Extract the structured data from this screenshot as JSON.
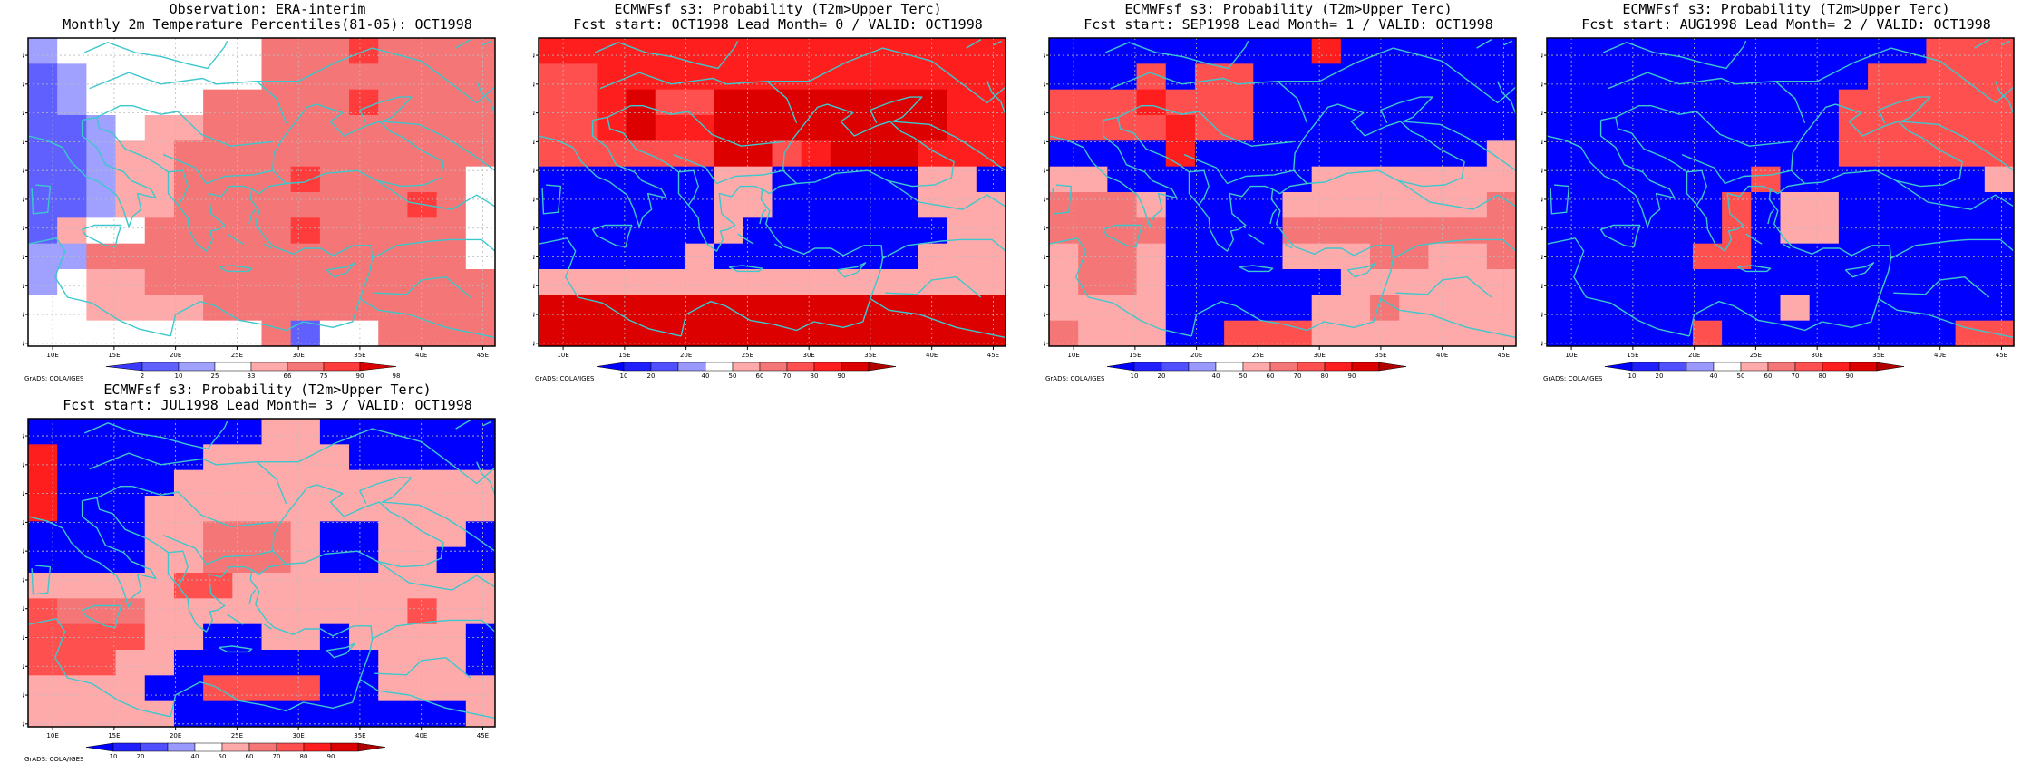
{
  "credit": "GrADS: COLA/IGES",
  "lon_ticks": [
    "10E",
    "15E",
    "20E",
    "25E",
    "30E",
    "35E",
    "40E",
    "45E"
  ],
  "lat_ticks": [
    "30N",
    "32N",
    "34N",
    "36N",
    "38N",
    "40N",
    "42N",
    "44N",
    "46N",
    "48N",
    "50N"
  ],
  "colors": {
    "coast": "#3cc8cc",
    "obs_scale": [
      "#3a3aff",
      "#6060ff",
      "#a0a0ff",
      "#ffffff",
      "#ffaaaa",
      "#f57676",
      "#ff3c3c",
      "#dd0000"
    ],
    "prob_scale": [
      "#0000ff",
      "#2020ff",
      "#5050ff",
      "#9999ff",
      "#ffffff",
      "#ffaaaa",
      "#f57676",
      "#ff5050",
      "#ff1e1e",
      "#dd0000",
      "#b00000"
    ]
  },
  "panels": [
    {
      "title1": "Observation: ERA-interim",
      "title2": "Monthly 2m Temperature Percentiles(81-05): OCT1998",
      "colorbar": {
        "type": "obs",
        "labels": [
          "2",
          "10",
          "25",
          "33",
          "66",
          "75",
          "90",
          "98"
        ]
      },
      "grid": [
        [
          -1,
          0,
          0,
          0,
          0,
          0,
          0,
          0,
          2,
          2,
          2,
          3,
          2,
          2,
          2,
          2
        ],
        [
          -2,
          -1,
          0,
          0,
          0,
          0,
          0,
          0,
          2,
          2,
          2,
          2,
          2,
          2,
          2,
          2
        ],
        [
          -2,
          -1,
          0,
          0,
          0,
          0,
          2,
          2,
          2,
          2,
          2,
          3,
          2,
          2,
          2,
          2
        ],
        [
          -2,
          -2,
          -1,
          0,
          1,
          1,
          2,
          2,
          2,
          2,
          2,
          2,
          2,
          2,
          2,
          2
        ],
        [
          -2,
          -2,
          -1,
          1,
          1,
          2,
          2,
          2,
          2,
          2,
          2,
          2,
          2,
          2,
          2,
          2
        ],
        [
          -2,
          -2,
          -1,
          1,
          1,
          2,
          2,
          2,
          2,
          3,
          2,
          2,
          2,
          2,
          2,
          0
        ],
        [
          -2,
          -2,
          -1,
          1,
          1,
          2,
          2,
          2,
          2,
          2,
          2,
          2,
          2,
          3,
          2,
          0
        ],
        [
          -2,
          1,
          0,
          0,
          2,
          2,
          2,
          2,
          2,
          3,
          2,
          2,
          2,
          2,
          2,
          0
        ],
        [
          -1,
          -1,
          2,
          2,
          2,
          2,
          2,
          2,
          2,
          2,
          2,
          2,
          2,
          2,
          2,
          0
        ],
        [
          -1,
          0,
          1,
          1,
          2,
          2,
          2,
          2,
          2,
          2,
          2,
          2,
          2,
          2,
          2,
          2
        ],
        [
          0,
          0,
          1,
          1,
          1,
          1,
          2,
          2,
          2,
          2,
          2,
          2,
          2,
          2,
          2,
          2
        ],
        [
          0,
          0,
          0,
          0,
          0,
          0,
          0,
          0,
          2,
          -2,
          0,
          0,
          2,
          2,
          2,
          2
        ]
      ]
    },
    {
      "title1": "ECMWFsf s3: Probability (T2m>Upper Terc)",
      "title2": "Fcst start: OCT1998  Lead Month= 0 / VALID: OCT1998",
      "colorbar": {
        "type": "prob",
        "labels": [
          "10",
          "20",
          "40",
          "50",
          "60",
          "70",
          "80",
          "90"
        ]
      },
      "grid": [
        [
          4,
          4,
          4,
          4,
          4,
          4,
          4,
          4,
          4,
          4,
          4,
          4,
          4,
          4,
          4,
          4
        ],
        [
          3,
          3,
          4,
          4,
          4,
          4,
          4,
          4,
          4,
          4,
          4,
          4,
          4,
          4,
          4,
          4
        ],
        [
          3,
          3,
          4,
          5,
          3,
          3,
          5,
          5,
          5,
          5,
          5,
          5,
          5,
          5,
          4,
          4
        ],
        [
          3,
          3,
          4,
          5,
          4,
          4,
          5,
          5,
          5,
          5,
          5,
          5,
          5,
          5,
          4,
          4
        ],
        [
          3,
          3,
          3,
          3,
          3,
          3,
          5,
          5,
          3,
          4,
          5,
          5,
          5,
          4,
          4,
          4
        ],
        [
          -4,
          -4,
          -4,
          -4,
          -4,
          -4,
          1,
          1,
          -4,
          -4,
          -4,
          -4,
          -4,
          1,
          1,
          -4
        ],
        [
          -4,
          -4,
          -4,
          -4,
          -4,
          -4,
          1,
          1,
          -4,
          -4,
          -4,
          -4,
          -4,
          1,
          1,
          1
        ],
        [
          -4,
          -4,
          -4,
          -4,
          -4,
          -4,
          1,
          -4,
          -4,
          -4,
          -4,
          -4,
          -4,
          -4,
          1,
          1
        ],
        [
          -4,
          -4,
          -4,
          -4,
          -4,
          1,
          -4,
          -4,
          -4,
          -4,
          -4,
          -4,
          -4,
          1,
          1,
          1
        ],
        [
          1,
          1,
          1,
          1,
          1,
          1,
          1,
          1,
          1,
          1,
          1,
          1,
          1,
          1,
          1,
          1
        ],
        [
          5,
          5,
          5,
          5,
          5,
          5,
          5,
          5,
          5,
          5,
          5,
          5,
          5,
          5,
          5,
          5
        ],
        [
          5,
          5,
          5,
          5,
          5,
          5,
          5,
          5,
          5,
          5,
          5,
          5,
          5,
          5,
          5,
          5
        ]
      ]
    },
    {
      "title1": "ECMWFsf s3: Probability (T2m>Upper Terc)",
      "title2": "Fcst start: SEP1998  Lead Month= 1 / VALID: OCT1998",
      "colorbar": {
        "type": "prob",
        "labels": [
          "10",
          "20",
          "40",
          "50",
          "60",
          "70",
          "80",
          "90"
        ]
      },
      "grid": [
        [
          -4,
          -4,
          -4,
          -4,
          -4,
          -4,
          -4,
          -4,
          -4,
          4,
          -4,
          -4,
          -4,
          -4,
          -4,
          -4
        ],
        [
          -4,
          -4,
          -4,
          3,
          -4,
          3,
          3,
          -4,
          -4,
          -4,
          -4,
          -4,
          -4,
          -4,
          -4,
          -4
        ],
        [
          3,
          3,
          3,
          4,
          3,
          3,
          3,
          -4,
          -4,
          -4,
          -4,
          -4,
          -4,
          -4,
          -4,
          -4
        ],
        [
          3,
          3,
          3,
          3,
          4,
          3,
          3,
          -4,
          -4,
          -4,
          -4,
          -4,
          -4,
          -4,
          -4,
          -4
        ],
        [
          -4,
          -4,
          -4,
          -4,
          4,
          -4,
          -4,
          -4,
          -4,
          -4,
          -4,
          -4,
          -4,
          -4,
          -4,
          1
        ],
        [
          1,
          1,
          -4,
          -4,
          -4,
          -4,
          -4,
          -4,
          -4,
          1,
          1,
          1,
          1,
          1,
          1,
          1
        ],
        [
          2,
          2,
          2,
          1,
          -4,
          -4,
          -4,
          -4,
          1,
          1,
          1,
          1,
          1,
          1,
          1,
          2
        ],
        [
          2,
          2,
          2,
          2,
          -4,
          -4,
          -4,
          -4,
          2,
          2,
          2,
          2,
          2,
          2,
          2,
          2
        ],
        [
          1,
          2,
          2,
          1,
          -4,
          -4,
          -4,
          -4,
          1,
          1,
          1,
          2,
          2,
          1,
          1,
          2
        ],
        [
          1,
          2,
          2,
          1,
          -4,
          -4,
          -4,
          -4,
          -4,
          -4,
          1,
          1,
          1,
          1,
          1,
          1
        ],
        [
          1,
          1,
          1,
          1,
          -4,
          -4,
          -4,
          -4,
          -4,
          1,
          1,
          2,
          1,
          1,
          1,
          1
        ],
        [
          2,
          1,
          1,
          1,
          -4,
          -4,
          3,
          3,
          3,
          1,
          1,
          1,
          1,
          1,
          1,
          1
        ]
      ]
    },
    {
      "title1": "ECMWFsf s3: Probability (T2m>Upper Terc)",
      "title2": "Fcst start: AUG1998  Lead Month= 2 / VALID: OCT1998",
      "colorbar": {
        "type": "prob",
        "labels": [
          "10",
          "20",
          "40",
          "50",
          "60",
          "70",
          "80",
          "90"
        ]
      },
      "grid": [
        [
          -4,
          -4,
          -4,
          -4,
          -4,
          -4,
          -4,
          -4,
          -4,
          -4,
          -4,
          -4,
          -4,
          3,
          3,
          3
        ],
        [
          -4,
          -4,
          -4,
          -4,
          -4,
          -4,
          -4,
          -4,
          -4,
          -4,
          -4,
          3,
          3,
          3,
          3,
          3
        ],
        [
          -4,
          -4,
          -4,
          -4,
          -4,
          -4,
          -4,
          -4,
          -4,
          -4,
          3,
          3,
          3,
          3,
          3,
          3
        ],
        [
          -4,
          -4,
          -4,
          -4,
          -4,
          -4,
          -4,
          -4,
          -4,
          -4,
          3,
          3,
          3,
          3,
          3,
          3
        ],
        [
          -4,
          -4,
          -4,
          -4,
          -4,
          -4,
          -4,
          -4,
          -4,
          -4,
          3,
          3,
          3,
          3,
          3,
          3
        ],
        [
          -4,
          -4,
          -4,
          -4,
          -4,
          -4,
          -4,
          3,
          -4,
          -4,
          -4,
          -4,
          -4,
          -4,
          -4,
          1
        ],
        [
          -4,
          -4,
          -4,
          -4,
          -4,
          -4,
          3,
          -4,
          1,
          1,
          -4,
          -4,
          -4,
          -4,
          -4,
          -4
        ],
        [
          -4,
          -4,
          -4,
          -4,
          -4,
          -4,
          3,
          -4,
          1,
          1,
          -4,
          -4,
          -4,
          -4,
          -4,
          -4
        ],
        [
          -4,
          -4,
          -4,
          -4,
          -4,
          3,
          3,
          -4,
          -4,
          -4,
          -4,
          -4,
          -4,
          -4,
          -4,
          -4
        ],
        [
          -4,
          -4,
          -4,
          -4,
          -4,
          -4,
          -4,
          -4,
          -4,
          -4,
          -4,
          -4,
          -4,
          -4,
          -4,
          -4
        ],
        [
          -4,
          -4,
          -4,
          -4,
          -4,
          -4,
          -4,
          -4,
          1,
          -4,
          -4,
          -4,
          -4,
          -4,
          -4,
          -4
        ],
        [
          -4,
          -4,
          -4,
          -4,
          -4,
          3,
          -4,
          -4,
          -4,
          -4,
          -4,
          -4,
          -4,
          -4,
          3,
          3
        ]
      ]
    },
    {
      "title1": "ECMWFsf s3: Probability (T2m>Upper Terc)",
      "title2": "Fcst start: JUL1998  Lead Month= 3 / VALID: OCT1998",
      "colorbar": {
        "type": "prob",
        "labels": [
          "10",
          "20",
          "40",
          "50",
          "60",
          "70",
          "80",
          "90"
        ]
      },
      "grid": [
        [
          -4,
          -4,
          -4,
          -4,
          -4,
          -4,
          -4,
          -4,
          1,
          1,
          -4,
          -4,
          -4,
          -4,
          -4,
          -4
        ],
        [
          4,
          -4,
          -4,
          -4,
          -4,
          -4,
          1,
          1,
          1,
          1,
          1,
          -4,
          -4,
          -4,
          -4,
          -4
        ],
        [
          4,
          -4,
          -4,
          -4,
          -4,
          1,
          1,
          1,
          1,
          1,
          1,
          1,
          1,
          1,
          1,
          1
        ],
        [
          4,
          -4,
          -4,
          -4,
          1,
          1,
          1,
          1,
          1,
          1,
          1,
          1,
          1,
          1,
          1,
          1
        ],
        [
          -4,
          -4,
          -4,
          -4,
          1,
          1,
          2,
          2,
          2,
          1,
          -4,
          -4,
          1,
          1,
          1,
          -4
        ],
        [
          -4,
          -4,
          -4,
          -4,
          1,
          1,
          2,
          2,
          2,
          1,
          -4,
          -4,
          1,
          1,
          -4,
          -4
        ],
        [
          1,
          1,
          1,
          1,
          1,
          3,
          3,
          1,
          1,
          1,
          1,
          1,
          1,
          1,
          1,
          1
        ],
        [
          3,
          2,
          2,
          2,
          1,
          1,
          1,
          1,
          1,
          1,
          1,
          1,
          1,
          3,
          1,
          1
        ],
        [
          3,
          3,
          3,
          3,
          1,
          1,
          -4,
          -4,
          1,
          1,
          -4,
          1,
          1,
          1,
          1,
          -4
        ],
        [
          3,
          3,
          3,
          1,
          1,
          -4,
          -4,
          -4,
          -4,
          -4,
          -4,
          -4,
          1,
          1,
          1,
          -4
        ],
        [
          1,
          1,
          1,
          1,
          -4,
          -4,
          3,
          3,
          3,
          3,
          -4,
          -4,
          1,
          1,
          1,
          1
        ],
        [
          1,
          1,
          1,
          1,
          1,
          -4,
          -4,
          -4,
          -4,
          -4,
          -4,
          -4,
          -4,
          -4,
          -4,
          1
        ]
      ]
    }
  ]
}
